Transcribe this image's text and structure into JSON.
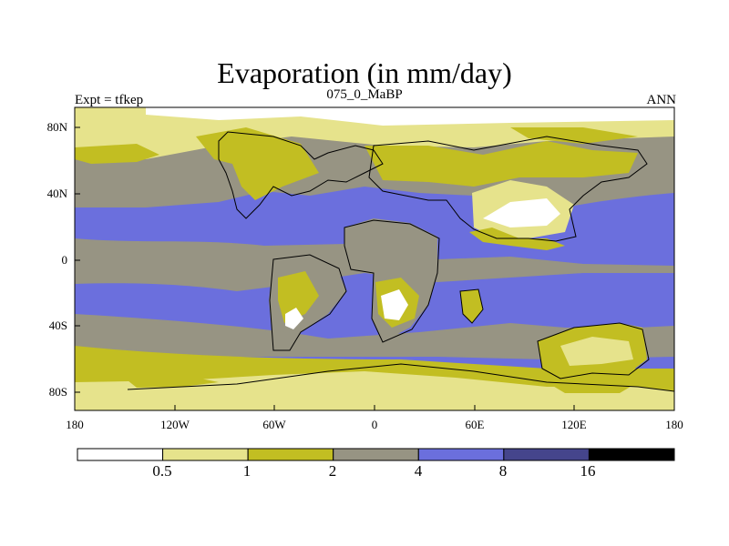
{
  "header": {
    "title": "Evaporation (in mm/day)",
    "left": "Expt = tfkep",
    "center": "075_0_MaBP",
    "right": "ANN"
  },
  "axes": {
    "x_ticks": [
      "180",
      "120W",
      "60W",
      "0",
      "60E",
      "120E",
      "180"
    ],
    "y_ticks": [
      "80N",
      "40N",
      "0",
      "40S",
      "80S"
    ]
  },
  "colorbar": {
    "bin_colors": [
      "#ffffff",
      "#e6e38c",
      "#c2be22",
      "#979483",
      "#6b6fdd",
      "#45458c",
      "#000000"
    ],
    "labels": [
      "0.5",
      "1",
      "2",
      "4",
      "8",
      "16"
    ]
  },
  "chart_data": {
    "type": "heatmap",
    "title": "Evaporation (in mm/day)",
    "xlabel": "",
    "ylabel": "",
    "x_ticks": [
      "180",
      "120W",
      "60W",
      "0",
      "60E",
      "120E",
      "180"
    ],
    "y_ticks": [
      "80N",
      "40N",
      "0",
      "40S",
      "80S"
    ],
    "xlim": [
      -180,
      180
    ],
    "ylim": [
      -90,
      90
    ],
    "levels": [
      0.5,
      1,
      2,
      4,
      8,
      16
    ],
    "units": "mm/day"
  }
}
